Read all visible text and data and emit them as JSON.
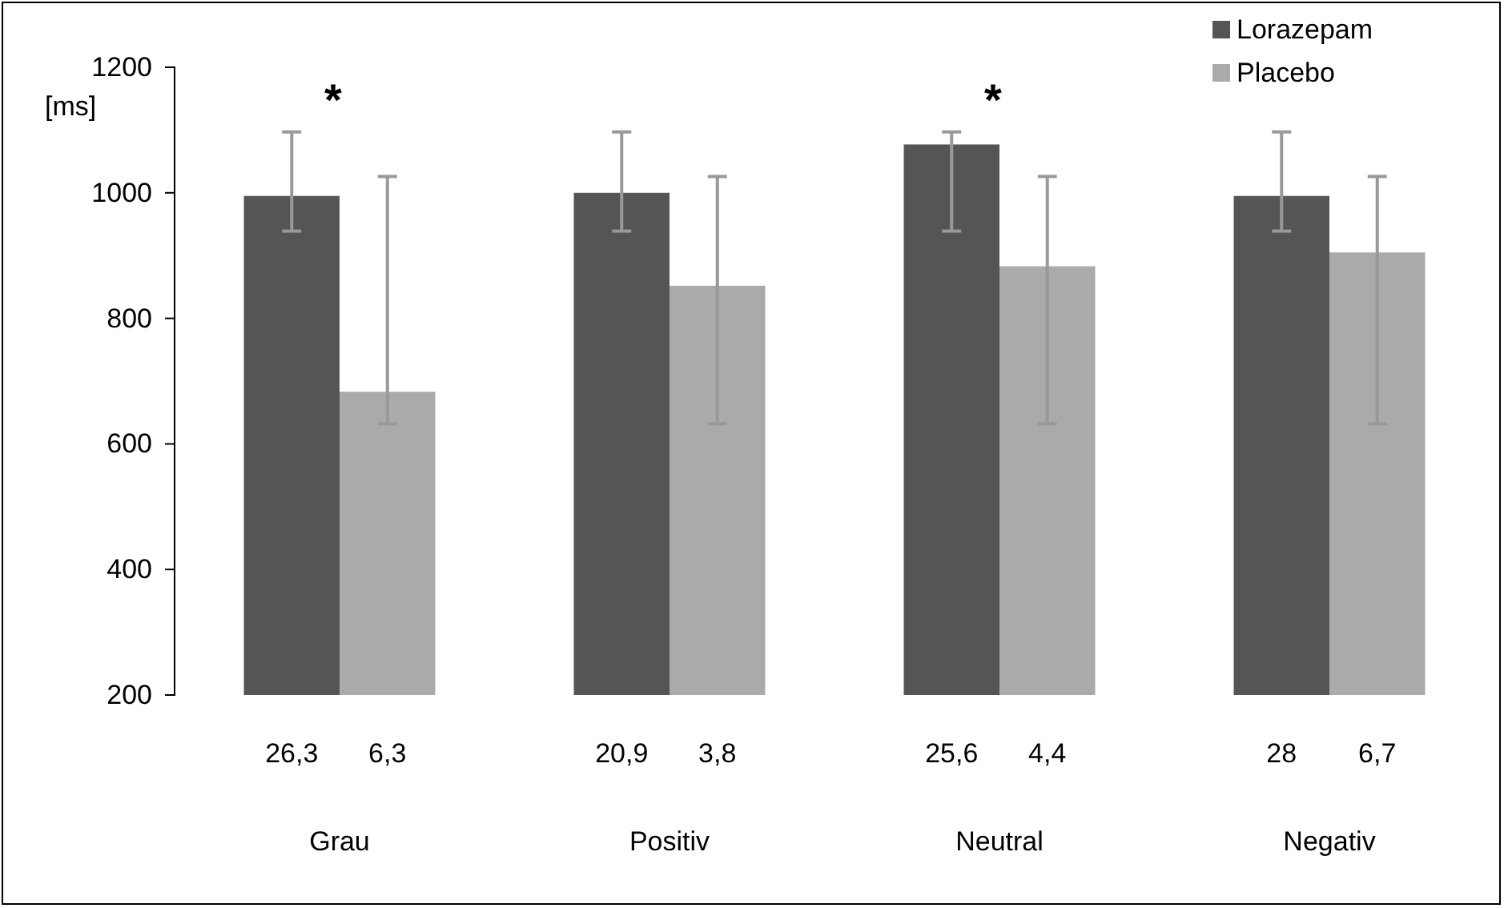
{
  "chart_data": {
    "type": "bar",
    "ylabel": "[ms]",
    "categories": [
      "Grau",
      "Positiv",
      "Neutral",
      "Negativ"
    ],
    "series": [
      {
        "name": "Lorazepam",
        "color": "#555555",
        "values": [
          995,
          1000,
          1077,
          995
        ],
        "errors": [
          [
            939,
            1097
          ],
          [
            939,
            1097
          ],
          [
            939,
            1097
          ],
          [
            939,
            1097
          ]
        ]
      },
      {
        "name": "Placebo",
        "color": "#aaaaaa",
        "values": [
          683,
          852,
          883,
          905
        ],
        "errors": [
          [
            632,
            1026
          ],
          [
            632,
            1026
          ],
          [
            632,
            1026
          ],
          [
            632,
            1026
          ]
        ]
      }
    ],
    "ylim": [
      200,
      1200
    ],
    "yticks": [
      200,
      400,
      600,
      800,
      1000,
      1200
    ],
    "grid": false,
    "legend": "top right",
    "annotations": [
      "*",
      "*",
      "26,3",
      "6,3",
      "20,9",
      "3,8",
      "25,6",
      "4,4",
      "28",
      "6,7"
    ]
  }
}
